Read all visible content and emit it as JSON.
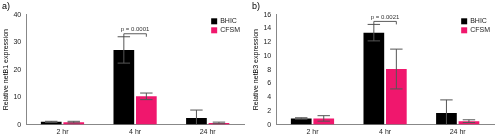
{
  "chart_data": [
    {
      "type": "bar",
      "title": "a)",
      "y_label": "Relative netB1 expression",
      "categories": [
        "2 hr",
        "4 hr",
        "24 hr"
      ],
      "series": [
        {
          "name": "BHIC",
          "color": "#000000",
          "values": [
            1.0,
            27.2,
            2.4
          ],
          "errors": [
            0.2,
            4.8,
            2.9
          ]
        },
        {
          "name": "CFSM",
          "color": "#f0176d",
          "values": [
            0.9,
            10.3,
            0.6
          ],
          "errors": [
            0.3,
            1.2,
            0.3
          ]
        }
      ],
      "ylim": [
        0,
        40
      ],
      "yticks": [
        0,
        10,
        20,
        30,
        40
      ],
      "grid": false,
      "legend": "upper right",
      "annotations": [
        {
          "text": "p = 0.0001",
          "category": "4 hr"
        }
      ]
    },
    {
      "type": "bar",
      "title": "b)",
      "y_label": "Relative netB3 expression",
      "categories": [
        "2 hr",
        "4 hr",
        "24 hr"
      ],
      "series": [
        {
          "name": "BHIC",
          "color": "#000000",
          "values": [
            0.9,
            13.4,
            1.7
          ],
          "errors": [
            0.1,
            1.2,
            1.9
          ]
        },
        {
          "name": "CFSM",
          "color": "#f0176d",
          "values": [
            0.9,
            8.1,
            0.5
          ],
          "errors": [
            0.4,
            2.9,
            0.2
          ]
        }
      ],
      "ylim": [
        0,
        16
      ],
      "yticks": [
        0,
        2,
        4,
        6,
        8,
        10,
        12,
        14,
        16
      ],
      "grid": false,
      "legend": "upper right",
      "annotations": [
        {
          "text": "p = 0.0021",
          "category": "4 hr"
        }
      ]
    }
  ]
}
